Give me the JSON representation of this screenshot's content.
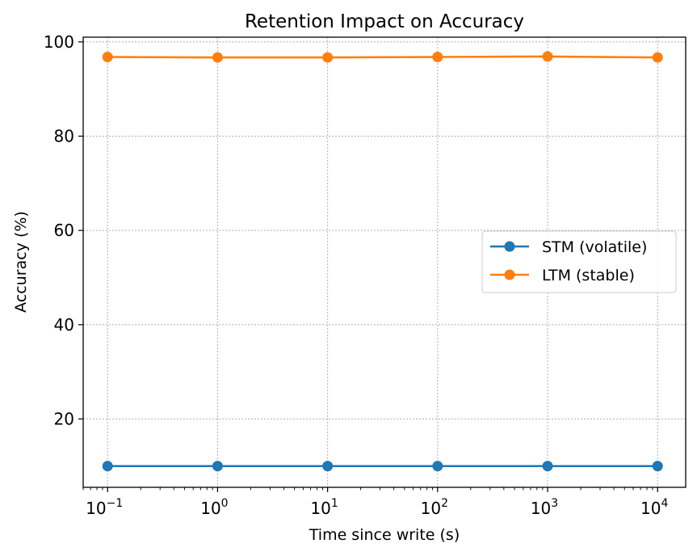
{
  "chart_data": {
    "type": "line",
    "title": "Retention Impact on Accuracy",
    "xlabel": "Time since write (s)",
    "ylabel": "Accuracy (%)",
    "x_scale": "log",
    "x": [
      0.1,
      1,
      10,
      100,
      1000,
      10000
    ],
    "xlim": [
      0.06,
      18000
    ],
    "ylim": [
      5.5,
      101
    ],
    "x_ticks": [
      {
        "base": "10",
        "exp": "−1"
      },
      {
        "base": "10",
        "exp": "0"
      },
      {
        "base": "10",
        "exp": "1"
      },
      {
        "base": "10",
        "exp": "2"
      },
      {
        "base": "10",
        "exp": "3"
      },
      {
        "base": "10",
        "exp": "4"
      }
    ],
    "y_ticks": [
      "20",
      "40",
      "60",
      "80",
      "100"
    ],
    "grid": true,
    "legend_position": "center-right",
    "series": [
      {
        "name": "STM (volatile)",
        "color": "#1f77b4",
        "marker": "circle",
        "values": [
          10.0,
          10.0,
          10.0,
          10.0,
          10.0,
          10.0
        ]
      },
      {
        "name": "LTM (stable)",
        "color": "#ff7f0e",
        "marker": "circle",
        "values": [
          96.8,
          96.7,
          96.7,
          96.8,
          96.9,
          96.7
        ]
      }
    ]
  }
}
